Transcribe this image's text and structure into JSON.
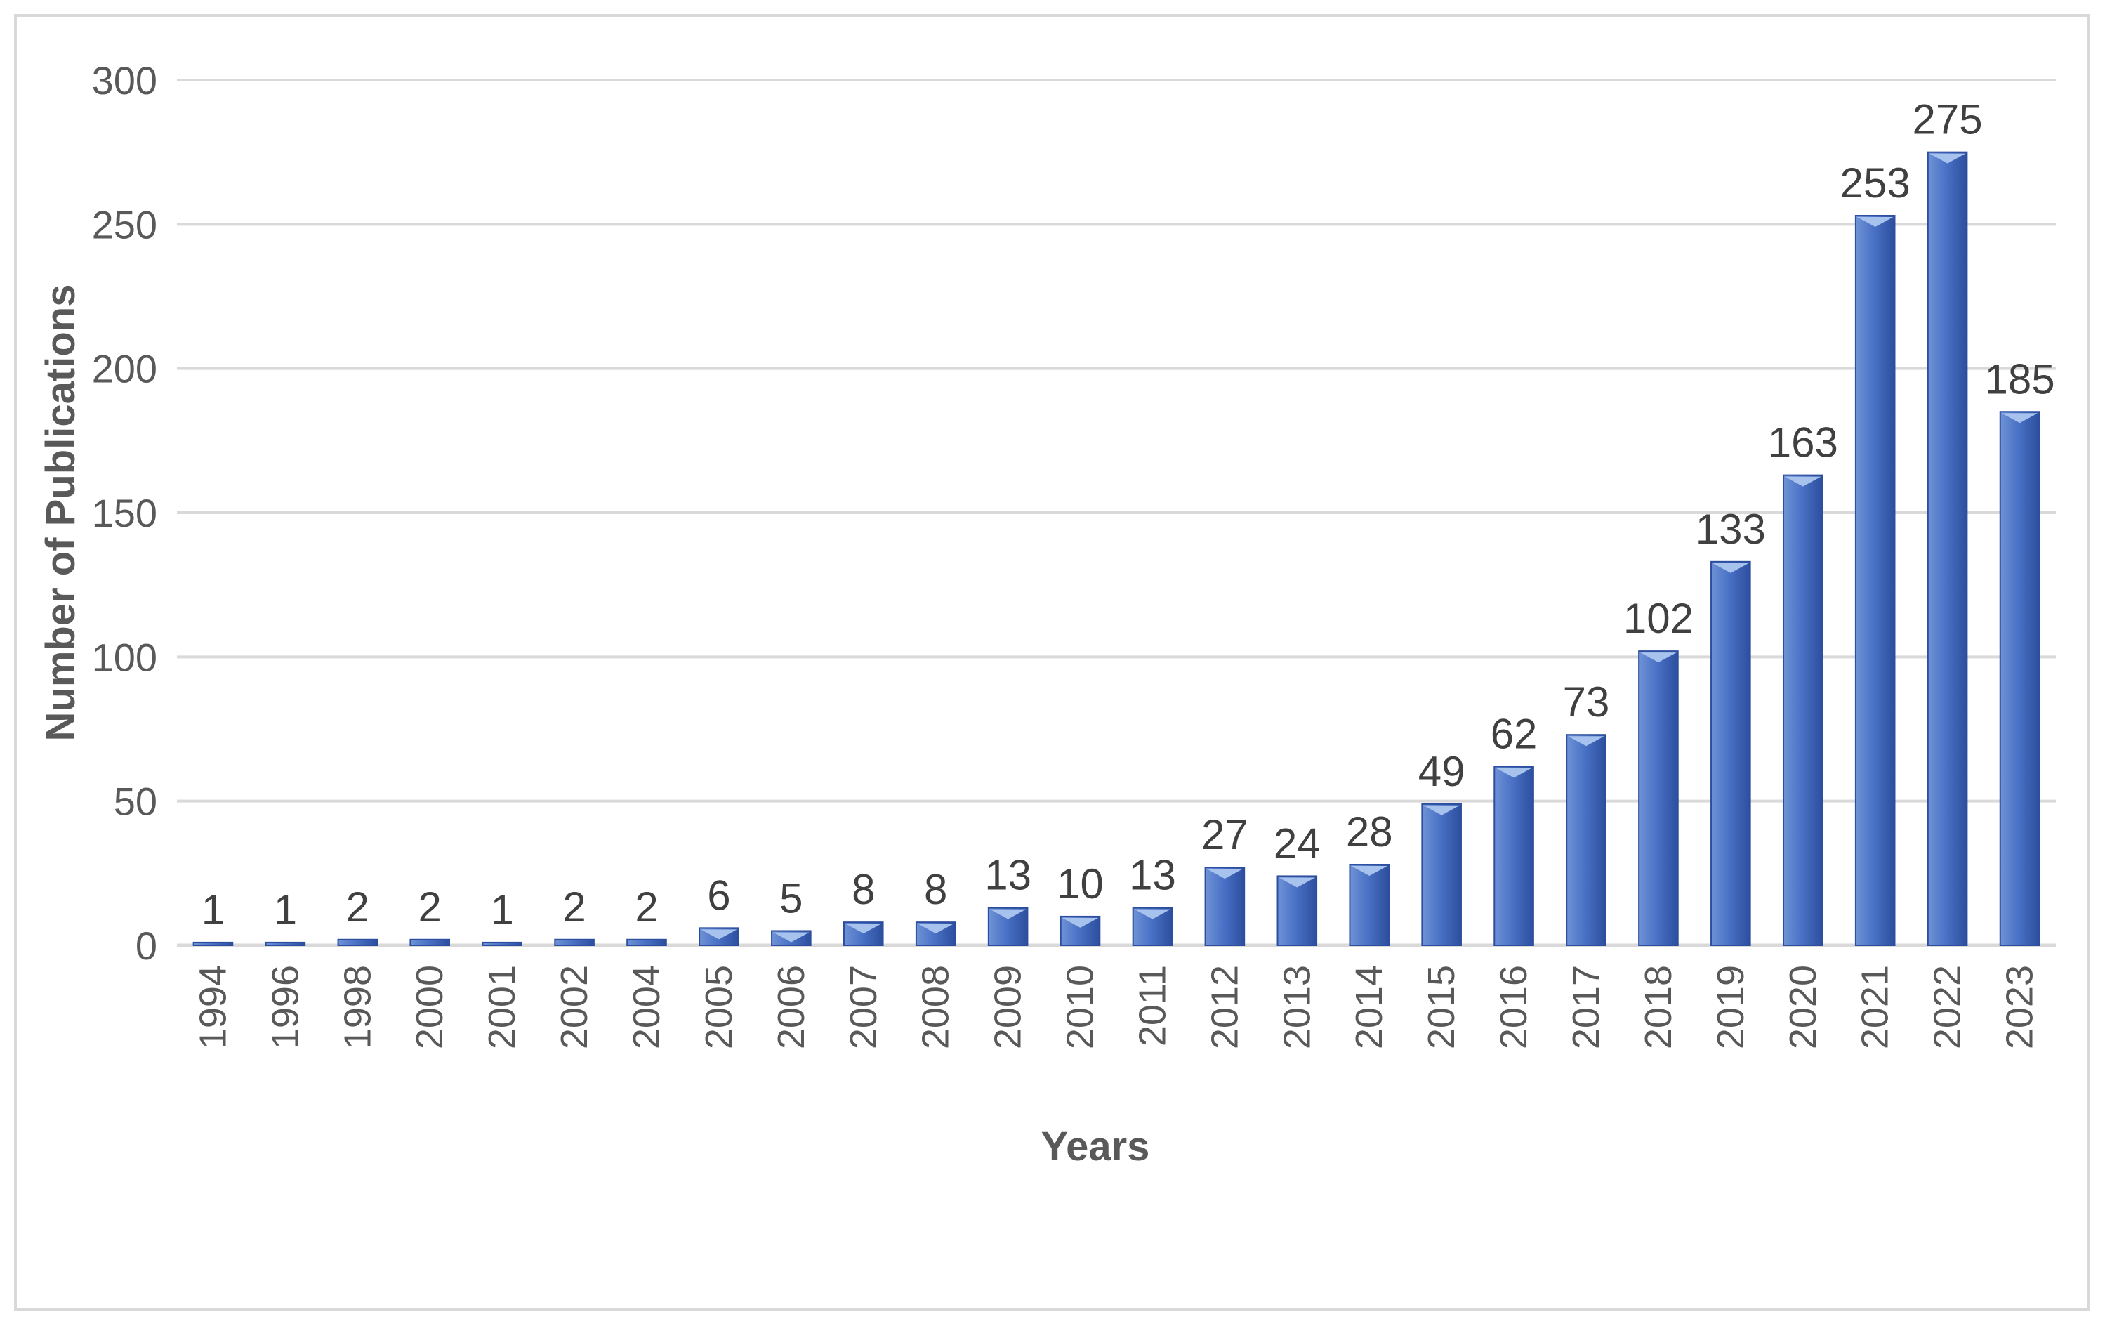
{
  "chart_data": {
    "type": "bar",
    "categories": [
      "1994",
      "1996",
      "1998",
      "2000",
      "2001",
      "2002",
      "2004",
      "2005",
      "2006",
      "2007",
      "2008",
      "2009",
      "2010",
      "2011",
      "2012",
      "2013",
      "2014",
      "2015",
      "2016",
      "2017",
      "2018",
      "2019",
      "2020",
      "2021",
      "2022",
      "2023"
    ],
    "values": [
      1,
      1,
      2,
      2,
      1,
      2,
      2,
      6,
      5,
      8,
      8,
      13,
      10,
      13,
      27,
      24,
      28,
      49,
      62,
      73,
      102,
      133,
      163,
      253,
      275,
      185
    ],
    "xlabel": "Years",
    "ylabel": "Number of Publications",
    "ylim": [
      0,
      300
    ],
    "yticks": [
      "0",
      "50",
      "100",
      "150",
      "200",
      "250",
      "300"
    ],
    "grid": true,
    "data_labels": true,
    "colors": {
      "bar_top": "#6f93d6",
      "bar_mid": "#3f67bf",
      "bar_dark": "#2d4e9e",
      "grid": "#d9d9d9",
      "frame": "#d9d9d9"
    }
  }
}
